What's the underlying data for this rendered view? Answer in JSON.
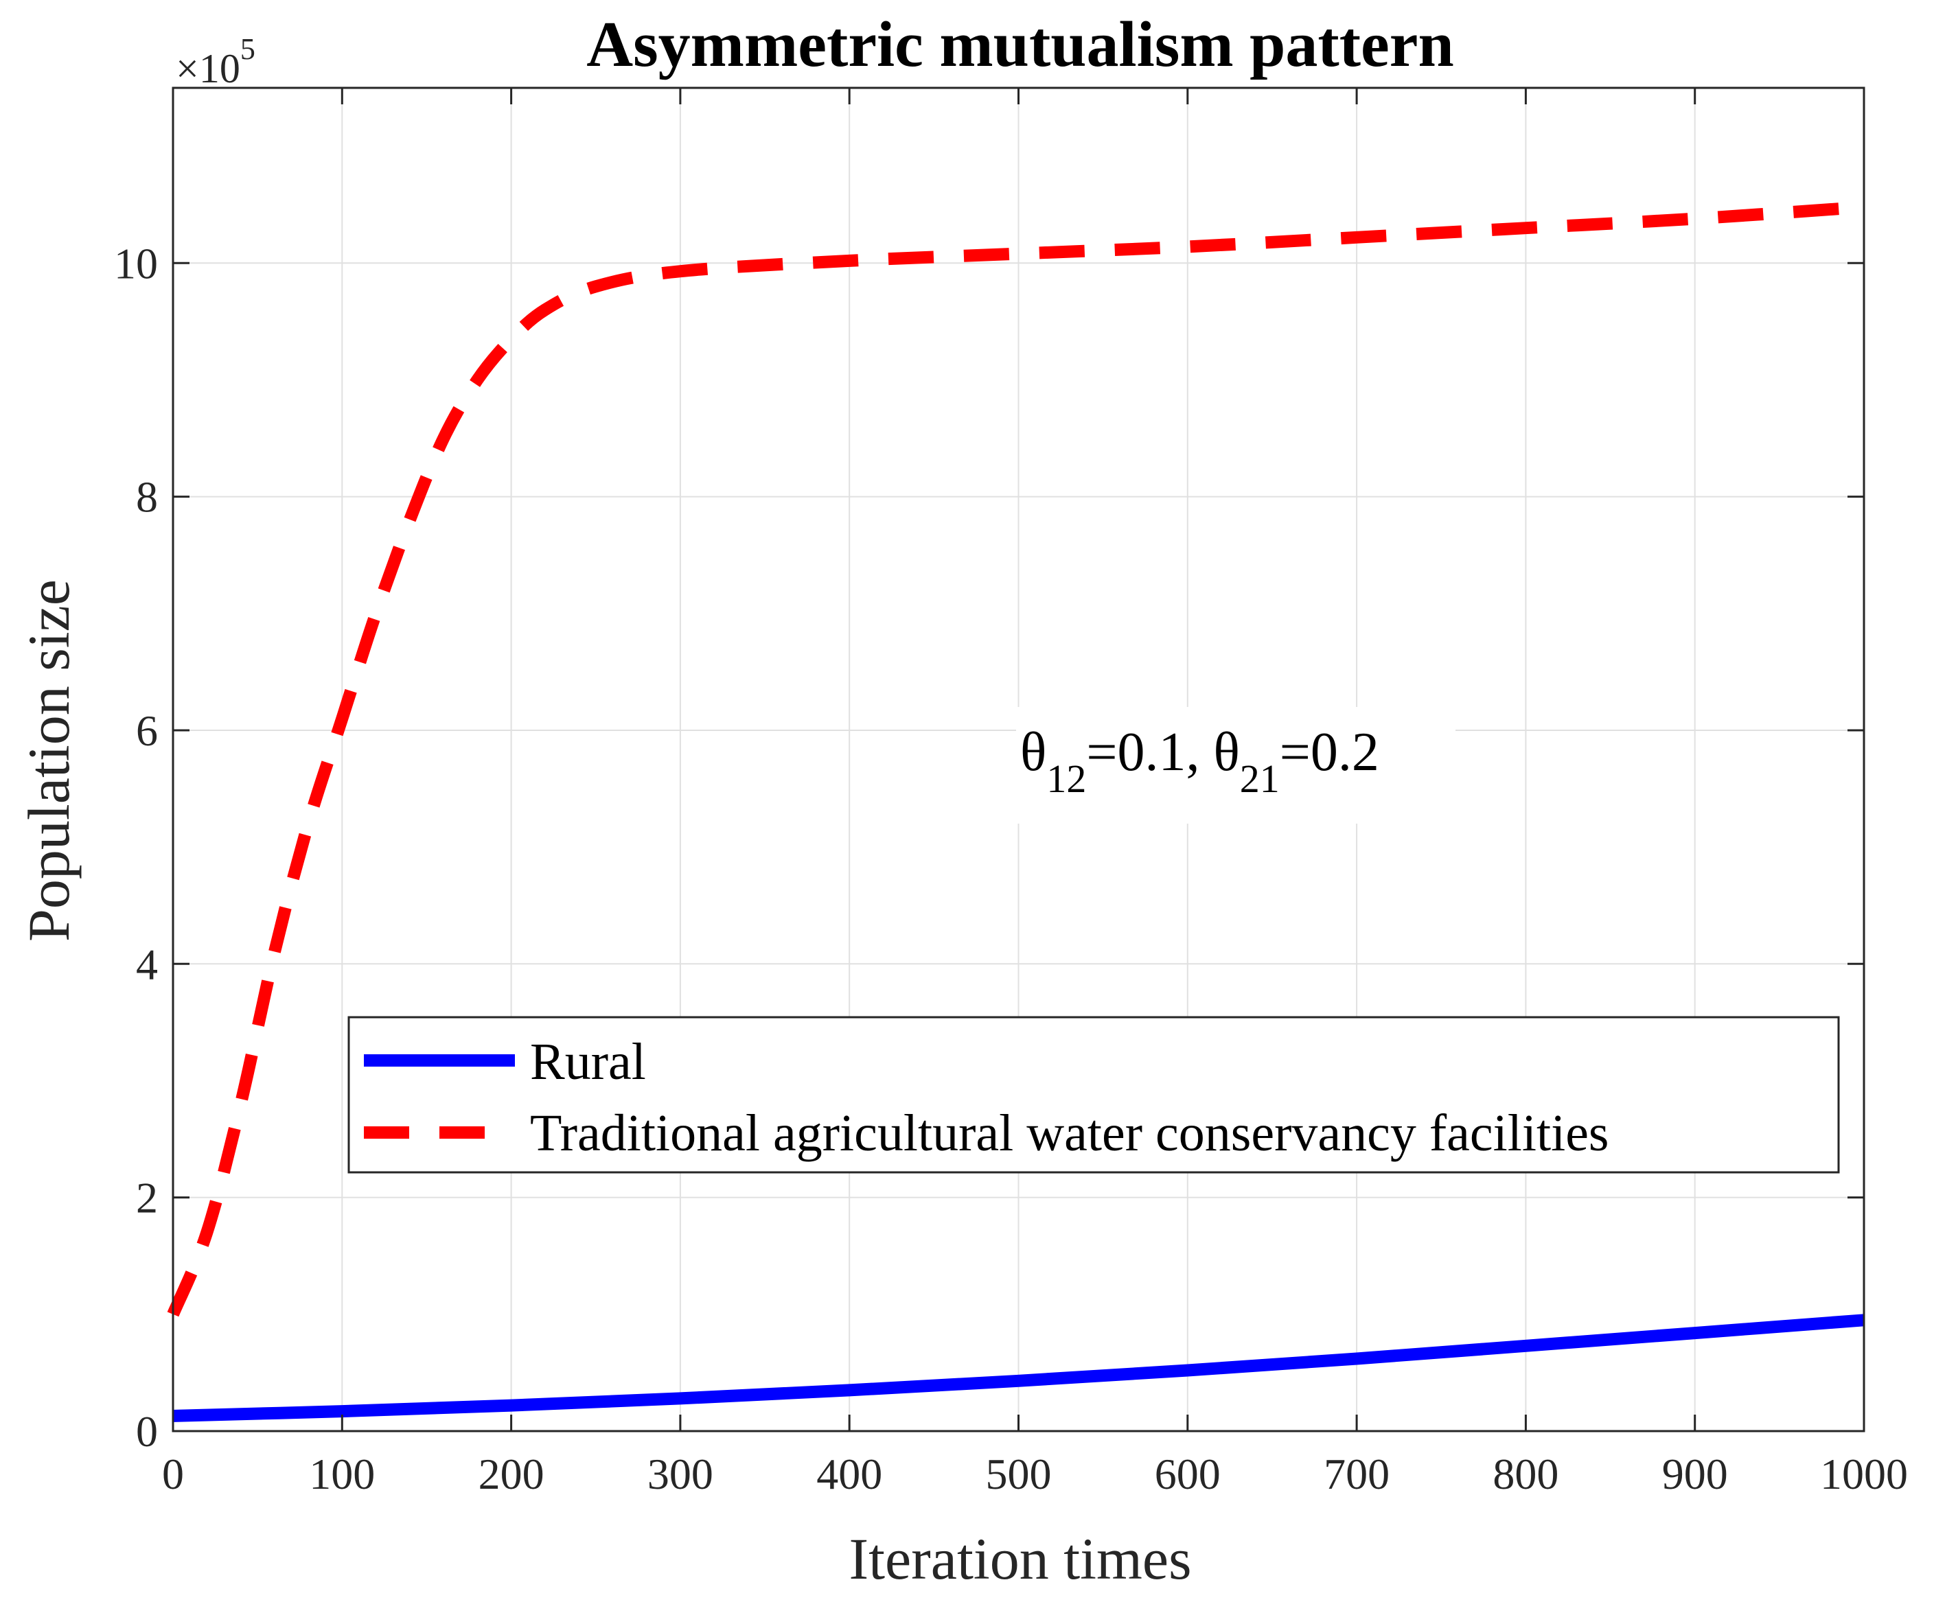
{
  "chart_data": {
    "type": "line",
    "title": "Asymmetric mutualism pattern",
    "xlabel": "Iteration times",
    "ylabel": "Population size",
    "y_exponent": {
      "base": "×10",
      "power": "5"
    },
    "xlim": [
      0,
      1000
    ],
    "ylim": [
      0,
      11.5
    ],
    "x_ticks": [
      0,
      100,
      200,
      300,
      400,
      500,
      600,
      700,
      800,
      900,
      1000
    ],
    "y_ticks": [
      0,
      2,
      4,
      6,
      8,
      10
    ],
    "grid": true,
    "legend_position": "lower-right",
    "annotation": {
      "p1": "θ",
      "s1": "12",
      "t1": "=0.1, ",
      "p2": "θ",
      "s2": "21",
      "t2": "=0.2"
    },
    "series": [
      {
        "name": "Rural",
        "color": "#0000ff",
        "style": "solid",
        "x": [
          0,
          100,
          200,
          300,
          400,
          500,
          600,
          700,
          800,
          900,
          1000
        ],
        "y": [
          0.13,
          0.17,
          0.22,
          0.28,
          0.35,
          0.43,
          0.52,
          0.62,
          0.73,
          0.84,
          0.95
        ]
      },
      {
        "name": "Traditional agricultural water conservancy facilities",
        "color": "#ff0000",
        "style": "dashed",
        "x": [
          0,
          20,
          40,
          60,
          80,
          100,
          120,
          140,
          160,
          180,
          200,
          220,
          250,
          300,
          400,
          500,
          600,
          700,
          800,
          900,
          1000
        ],
        "y": [
          1.0,
          1.7,
          2.8,
          4.1,
          5.2,
          6.1,
          7.0,
          7.8,
          8.5,
          9.0,
          9.35,
          9.6,
          9.8,
          9.93,
          10.02,
          10.08,
          10.14,
          10.22,
          10.3,
          10.38,
          10.48
        ]
      }
    ]
  }
}
